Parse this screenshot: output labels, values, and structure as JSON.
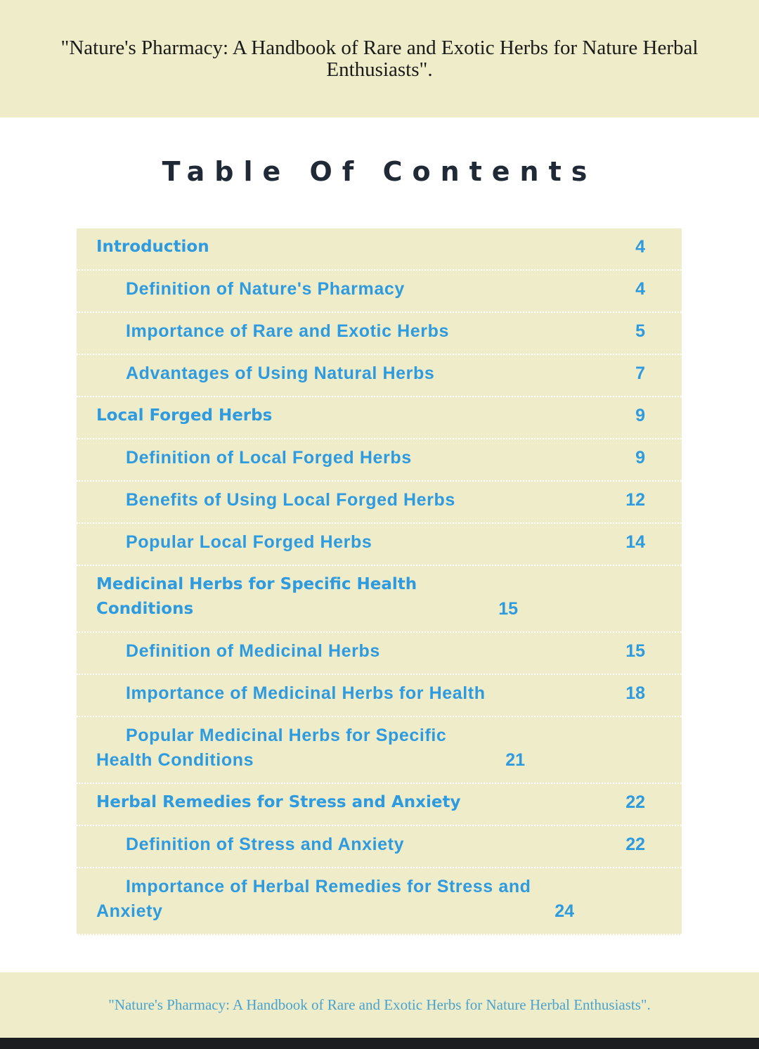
{
  "header": {
    "title": "\"Nature's Pharmacy: A Handbook of Rare and Exotic Herbs for Nature Herbal Enthusiasts\"."
  },
  "toc_title": "Table Of Contents",
  "entries": [
    {
      "title": "Introduction",
      "page": "4",
      "level": 1
    },
    {
      "title": "Definition of Nature's Pharmacy",
      "page": "4",
      "level": 2
    },
    {
      "title": "Importance of Rare and Exotic Herbs",
      "page": "5",
      "level": 2
    },
    {
      "title": "Advantages of Using Natural Herbs",
      "page": "7",
      "level": 2
    },
    {
      "title": "Local Forged Herbs",
      "page": "9",
      "level": 1
    },
    {
      "title": "Definition of Local Forged Herbs",
      "page": "9",
      "level": 2
    },
    {
      "title": "Benefits of Using Local Forged Herbs",
      "page": "12",
      "level": 2
    },
    {
      "title": "Popular Local Forged Herbs",
      "page": "14",
      "level": 2
    },
    {
      "title": "Medicinal Herbs for Specific Health Conditions",
      "page": "15",
      "level": 1
    },
    {
      "title": "Definition of Medicinal Herbs",
      "page": "15",
      "level": 2
    },
    {
      "title": "Importance of Medicinal Herbs for Health",
      "page": "18",
      "level": 2
    },
    {
      "title": "Popular Medicinal Herbs for Specific Health Conditions",
      "page": "21",
      "level": 2
    },
    {
      "title": "Herbal Remedies for Stress and Anxiety",
      "page": "22",
      "level": 1
    },
    {
      "title": "Definition of Stress and Anxiety",
      "page": "22",
      "level": 2
    },
    {
      "title": "Importance of Herbal Remedies for Stress and Anxiety",
      "page": "24",
      "level": 2
    }
  ],
  "footer": {
    "text": "\"Nature's Pharmacy: A Handbook of Rare and Exotic Herbs for Nature Herbal Enthusiasts\"."
  },
  "colors": {
    "band": "#efecc9",
    "link": "#2e9ae0",
    "title": "#1f2a36",
    "footer_text": "#4aa3cf"
  }
}
